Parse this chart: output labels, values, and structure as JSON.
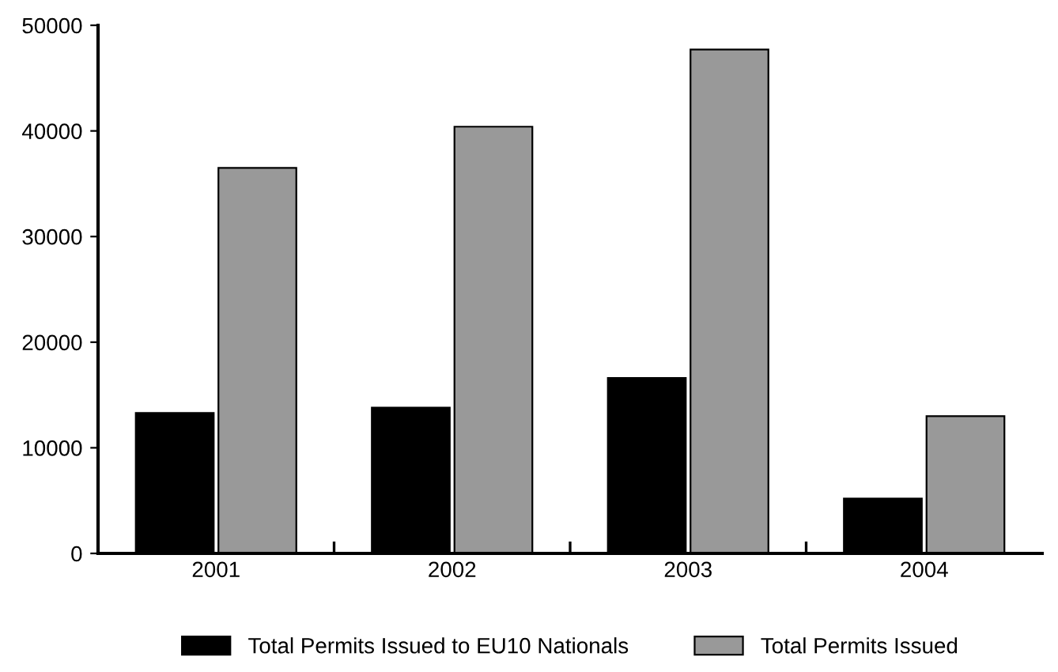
{
  "chart_data": {
    "type": "bar",
    "categories": [
      "2001",
      "2002",
      "2003",
      "2004"
    ],
    "series": [
      {
        "name": "Total Permits Issued to EU10 Nationals",
        "color": "#000000",
        "values": [
          13300,
          13800,
          16600,
          5200
        ]
      },
      {
        "name": "Total Permits Issued",
        "color": "#999999",
        "values": [
          36500,
          40400,
          47700,
          13000
        ]
      }
    ],
    "ylim": [
      0,
      50000
    ],
    "yticks": [
      0,
      10000,
      20000,
      30000,
      40000,
      50000
    ],
    "grid": false,
    "legend": "bottom"
  }
}
